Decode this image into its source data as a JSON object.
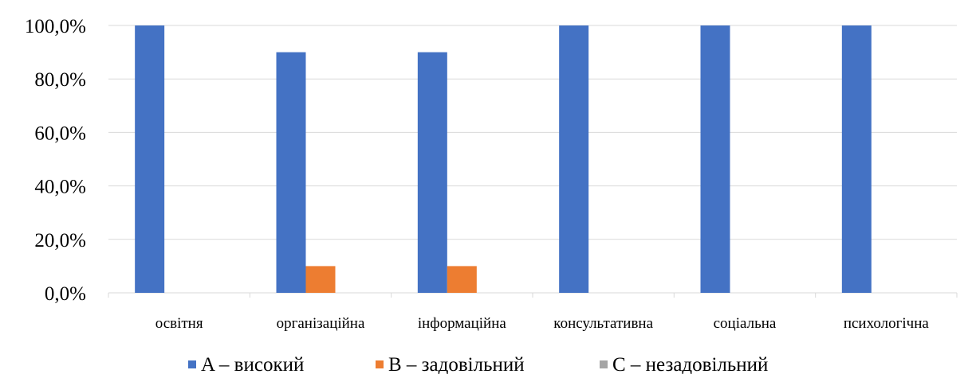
{
  "chart_data": {
    "type": "bar",
    "categories": [
      "освітня",
      "організаційна",
      "інформаційна",
      "консультативна",
      "соціальна",
      "психологічна"
    ],
    "series": [
      {
        "name": "A – високий",
        "color": "#4472C4",
        "values": [
          100.0,
          90.0,
          90.0,
          100.0,
          100.0,
          100.0
        ]
      },
      {
        "name": "B – задовільний",
        "color": "#ED7D31",
        "values": [
          0.0,
          10.0,
          10.0,
          0.0,
          0.0,
          0.0
        ]
      },
      {
        "name": "C – незадовільний",
        "color": "#A5A5A5",
        "values": [
          0.0,
          0.0,
          0.0,
          0.0,
          0.0,
          0.0
        ]
      }
    ],
    "yticks": [
      "0,0%",
      "20,0%",
      "40,0%",
      "60,0%",
      "80,0%",
      "100,0%"
    ],
    "ylim": [
      0,
      100
    ],
    "grid": true,
    "legend_position": "bottom",
    "title": "",
    "xlabel": "",
    "ylabel": ""
  }
}
